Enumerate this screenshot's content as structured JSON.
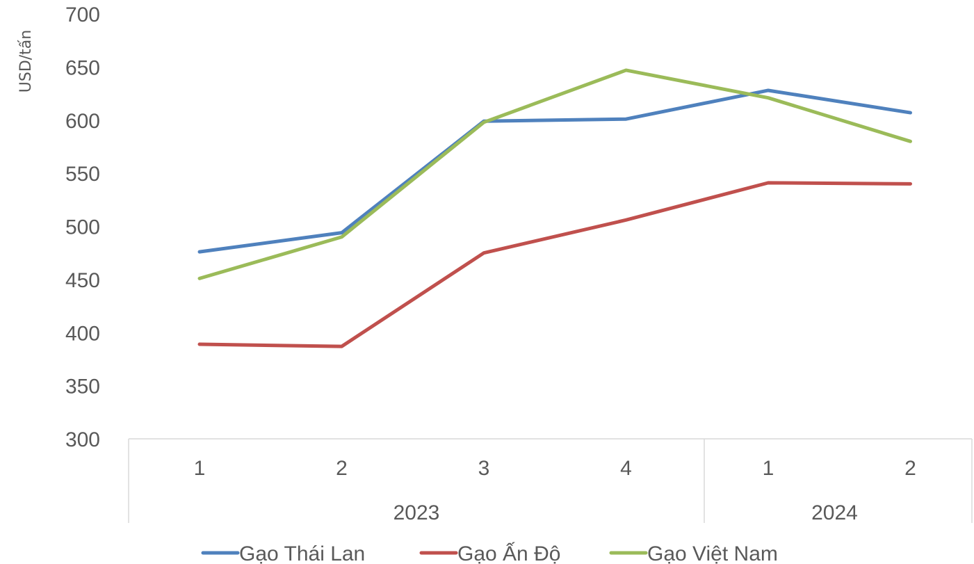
{
  "chart_data": {
    "type": "line",
    "title": "",
    "xlabel": "",
    "ylabel": "USD/tấn",
    "ylim": [
      300,
      700
    ],
    "yticks": [
      300,
      350,
      400,
      450,
      500,
      550,
      600,
      650,
      700
    ],
    "categories": [
      "1",
      "2",
      "3",
      "4",
      "1",
      "2"
    ],
    "groups": [
      {
        "label": "2023",
        "count": 4
      },
      {
        "label": "2024",
        "count": 2
      }
    ],
    "series": [
      {
        "name": "Gạo Thái Lan",
        "color": "#4f81bd",
        "values": [
          476,
          494,
          599,
          601,
          628,
          607
        ]
      },
      {
        "name": "Gạo Ấn Độ",
        "color": "#c0504d",
        "values": [
          389,
          387,
          475,
          506,
          541,
          540
        ]
      },
      {
        "name": "Gạo Việt Nam",
        "color": "#9bbb59",
        "values": [
          451,
          490,
          598,
          647,
          621,
          580
        ]
      }
    ],
    "legend_position": "bottom",
    "grid": false
  }
}
